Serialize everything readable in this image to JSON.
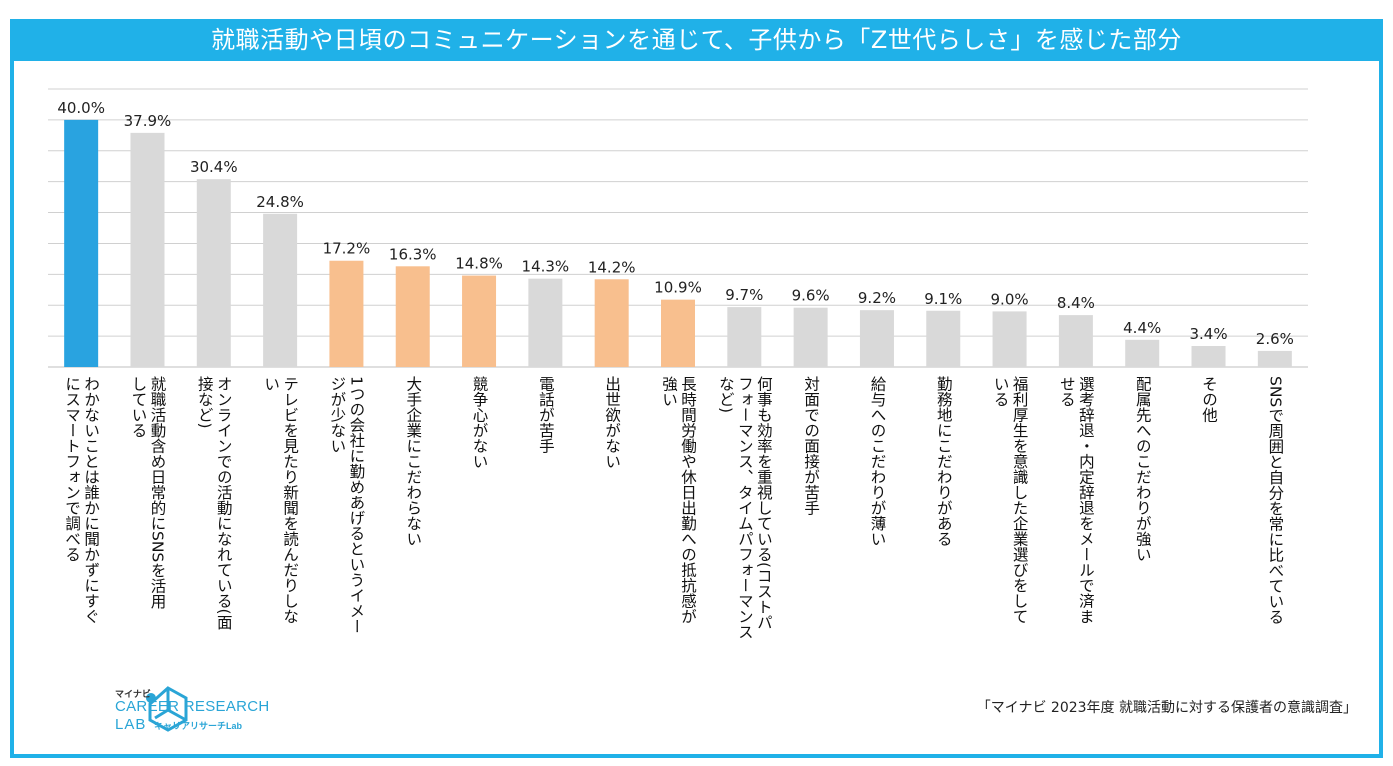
{
  "chart_data": {
    "type": "bar",
    "title": "就職活動や日頃のコミュニケーションを通じて、子供から「Z世代らしさ」を感じた部分",
    "categories": [
      "わかないことは誰かに聞かずにすぐ\nにスマートフォンで調べる",
      "就職活動含め日常的にSNSを活用\nしている",
      "オンラインでの活動になれている(面\n接など)",
      "テレビを見たり新聞を読んだりしな\nい",
      "1つの会社に勤めあげるというイメー\nジが少ない",
      "大手企業にこだわらない",
      "競争心がない",
      "電話が苦手",
      "出世欲がない",
      "長時間労働や休日出勤への抵抗感が\n強い",
      "何事も効率を重視している(コストパ\nフォーマンス、タイムパフォーマンス\nなど)",
      "対面での面接が苦手",
      "給与へのこだわりが薄い",
      "勤務地にこだわりがある",
      "福利厚生を意識した企業選びをして\nいる",
      "選考辞退・内定辞退をメールで済ま\nせる",
      "配属先へのこだわりが強い",
      "その他",
      "SNSで周囲と自分を常に比べている"
    ],
    "values": [
      40.0,
      37.9,
      30.4,
      24.8,
      17.2,
      16.3,
      14.8,
      14.3,
      14.2,
      10.9,
      9.7,
      9.6,
      9.2,
      9.1,
      9.0,
      8.4,
      4.4,
      3.4,
      2.6
    ],
    "value_labels": [
      "40.0%",
      "37.9%",
      "30.4%",
      "24.8%",
      "17.2%",
      "16.3%",
      "14.8%",
      "14.3%",
      "14.2%",
      "10.9%",
      "9.7%",
      "9.6%",
      "9.2%",
      "9.1%",
      "9.0%",
      "8.4%",
      "4.4%",
      "3.4%",
      "2.6%"
    ],
    "bar_colors": [
      "#29a3e0",
      "#d9d9d9",
      "#d9d9d9",
      "#d9d9d9",
      "#f8bf8e",
      "#f8bf8e",
      "#f8bf8e",
      "#d9d9d9",
      "#f8bf8e",
      "#f8bf8e",
      "#d9d9d9",
      "#d9d9d9",
      "#d9d9d9",
      "#d9d9d9",
      "#d9d9d9",
      "#d9d9d9",
      "#d9d9d9",
      "#d9d9d9",
      "#d9d9d9"
    ],
    "ylim": [
      0,
      45
    ],
    "ytick_step": 5,
    "grid": true,
    "xlabel": "",
    "ylabel": ""
  },
  "source": "「マイナビ 2023年度 就職活動に対する保護者の意識調査」",
  "logo": {
    "small": "マイナビ",
    "main": "CAREER RESEARCH",
    "lab": "LAB",
    "kana": "キャリアリサーチLab"
  },
  "colors": {
    "accent": "#20b1e8",
    "grid": "#d0d0d0"
  }
}
